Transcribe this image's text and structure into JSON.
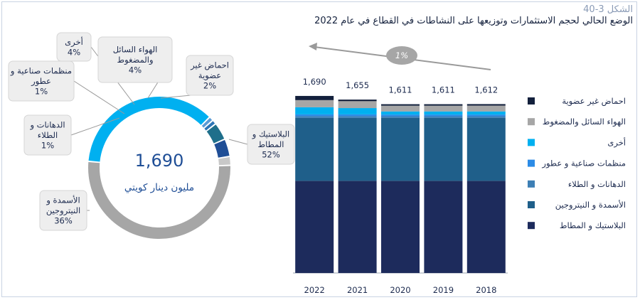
{
  "figure": {
    "number": "الشكل 3-40",
    "title": "الوضع الحالي لحجم الاستثمارات وتوزيعها على النشاطات في القطاع في عام 2022"
  },
  "donut": {
    "center_value": "1,690",
    "center_unit": "مليون دينار كويتي"
  },
  "growth_label": "1%",
  "chart_data": [
    {
      "type": "pie",
      "title": "",
      "slices": [
        {
          "name": "البلاستيك و المطاط",
          "label_lines": [
            "البلاستيك و",
            "المطاط"
          ],
          "pct_label": "52%",
          "value": 52,
          "color": "#a6a6a6"
        },
        {
          "name": "الأسمدة و النيتروجين",
          "label_lines": [
            "الأسمدة و",
            "النيتروجين"
          ],
          "pct_label": "36%",
          "value": 36,
          "color": "#00b0f0"
        },
        {
          "name": "الدهانات و الطلاء",
          "label_lines": [
            "الدهانات و",
            "الطلاء"
          ],
          "pct_label": "1%",
          "value": 1,
          "color": "#5b9bd5"
        },
        {
          "name": "منظمات صناعية و عطور",
          "label_lines": [
            "منظمات صناعية و",
            "عطور"
          ],
          "pct_label": "1%",
          "value": 1,
          "color": "#2e75b6"
        },
        {
          "name": "أخرى",
          "label_lines": [
            "أخرى"
          ],
          "pct_label": "4%",
          "value": 4,
          "color": "#1f6f8b"
        },
        {
          "name": "الهواء السائل والمضغوط",
          "label_lines": [
            "الهواء السائل",
            "والمضغوط"
          ],
          "pct_label": "4%",
          "value": 4,
          "color": "#1f4e96"
        },
        {
          "name": "احماض غير عضوية",
          "label_lines": [
            "احماض غير",
            "عضوية"
          ],
          "pct_label": "2%",
          "value": 2,
          "color": "#c8c8c8"
        }
      ]
    },
    {
      "type": "bar",
      "stacked": true,
      "title": "",
      "categories": [
        "2022",
        "2021",
        "2020",
        "2019",
        "2018"
      ],
      "totals": [
        "1,690",
        "1,655",
        "1,611",
        "1,611",
        "1,612"
      ],
      "total_values": [
        1690,
        1655,
        1611,
        1611,
        1612
      ],
      "ylim": [
        0,
        1900
      ],
      "series": [
        {
          "name": "البلاستيك و المطاط",
          "color": "#1d2b5c",
          "values": [
            880,
            880,
            880,
            880,
            880
          ]
        },
        {
          "name": "الأسمدة و النيتروجين",
          "color": "#1f5f8a",
          "values": [
            600,
            600,
            600,
            600,
            600
          ]
        },
        {
          "name": "الدهانات و الطلاء",
          "color": "#3d7fb5",
          "values": [
            17,
            17,
            16,
            16,
            16
          ]
        },
        {
          "name": "منظمات صناعية و عطور",
          "color": "#2b8be6",
          "values": [
            17,
            17,
            16,
            16,
            16
          ]
        },
        {
          "name": "أخرى",
          "color": "#00b0f0",
          "values": [
            68,
            60,
            30,
            30,
            30
          ]
        },
        {
          "name": "الهواء السائل والمضغوط",
          "color": "#a6a6a6",
          "values": [
            68,
            66,
            55,
            55,
            56
          ]
        },
        {
          "name": "احماض غير عضوية",
          "color": "#13203c",
          "values": [
            40,
            15,
            14,
            14,
            14
          ]
        }
      ],
      "legend_order": [
        "احماض غير عضوية",
        "الهواء السائل والمضغوط",
        "أخرى",
        "منظمات صناعية و عطور",
        "الدهانات و الطلاء",
        "الأسمدة و النيتروجين",
        "البلاستيك و المطاط"
      ],
      "legend_position": "right"
    }
  ]
}
